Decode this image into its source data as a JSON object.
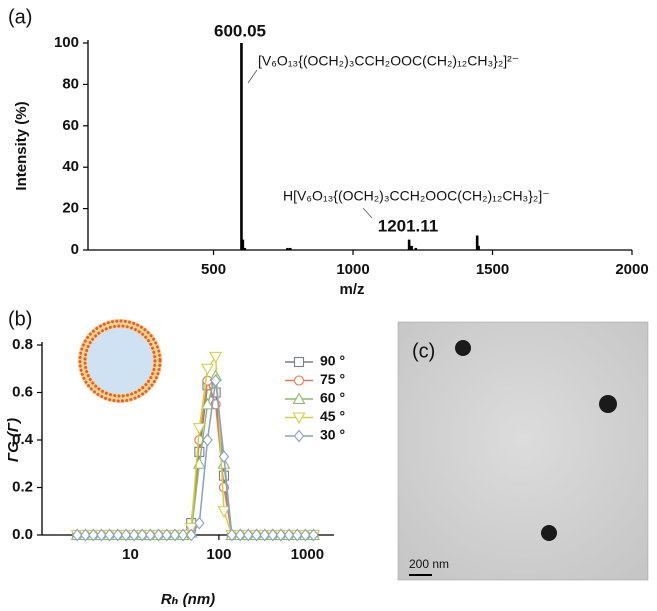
{
  "chart_data": [
    {
      "type": "stem",
      "label": "(a)",
      "x_label": "m/z",
      "y_label": "Intensity (%)",
      "x": [
        600.05,
        605,
        612,
        765,
        775,
        1201.11,
        1210,
        1225,
        1445,
        1450
      ],
      "values": [
        100,
        5,
        1,
        1,
        1,
        5,
        2,
        1,
        7,
        2
      ],
      "color": "#000000",
      "xlim": [
        50,
        2000
      ],
      "xticks": [
        500,
        1000,
        1500,
        2000
      ],
      "ylim": [
        0,
        100
      ],
      "yticks": [
        0,
        20,
        40,
        60,
        80,
        100
      ],
      "annotations": [
        "600.05",
        "[V₆O₁₃{(OCH₂)₃CCH₂OOC(CH₂)₁₂CH₃}₂]²⁻",
        "H[V₆O₁₃{(OCH₂)₃CCH₂OOC(CH₂)₁₂CH₃}₂]⁻",
        "1201.11"
      ]
    },
    {
      "type": "line",
      "label": "(b)",
      "x_label": "Rₕ (nm)",
      "y_label": "ΓG (Γ)",
      "xscale": "log",
      "x": [
        2.5,
        3.1,
        3.8,
        4.7,
        5.8,
        7.2,
        8.9,
        11,
        13.6,
        16.8,
        20.8,
        25.7,
        31.8,
        39.3,
        48.6,
        60.1,
        74.3,
        91.9,
        114,
        140,
        174,
        215,
        266,
        329,
        406,
        502,
        621,
        768,
        950,
        1174
      ],
      "series": [
        {
          "name": "90 °",
          "color": "#7a7f8a",
          "marker": "square",
          "values": [
            0,
            0,
            0,
            0,
            0,
            0,
            0,
            0,
            0,
            0,
            0,
            0,
            0,
            0,
            0.05,
            0.35,
            0.63,
            0.6,
            0.25,
            0,
            0,
            0,
            0,
            0,
            0,
            0,
            0,
            0,
            0,
            0
          ]
        },
        {
          "name": "75 °",
          "color": "#e07b54",
          "marker": "circle",
          "values": [
            0,
            0,
            0,
            0,
            0,
            0,
            0,
            0,
            0,
            0,
            0,
            0,
            0,
            0,
            0.02,
            0.4,
            0.65,
            0.55,
            0.2,
            0,
            0,
            0,
            0,
            0,
            0,
            0,
            0,
            0,
            0,
            0
          ]
        },
        {
          "name": "60 °",
          "color": "#8dbb6b",
          "marker": "triangle-up",
          "values": [
            0,
            0,
            0,
            0,
            0,
            0,
            0,
            0,
            0,
            0,
            0,
            0,
            0,
            0,
            0.01,
            0.3,
            0.55,
            0.67,
            0.3,
            0,
            0,
            0,
            0,
            0,
            0,
            0,
            0,
            0,
            0,
            0
          ]
        },
        {
          "name": "45 °",
          "color": "#d4cf4a",
          "marker": "triangle-down",
          "values": [
            0,
            0,
            0,
            0,
            0,
            0,
            0,
            0,
            0,
            0,
            0,
            0,
            0,
            0,
            0.03,
            0.45,
            0.7,
            0.75,
            0.1,
            0,
            0,
            0,
            0,
            0,
            0,
            0,
            0,
            0,
            0,
            0
          ]
        },
        {
          "name": "30 °",
          "color": "#8aa0c8",
          "marker": "diamond",
          "values": [
            0,
            0,
            0,
            0,
            0,
            0,
            0,
            0,
            0,
            0,
            0,
            0,
            0,
            0,
            0,
            0.05,
            0.4,
            0.65,
            0.33,
            0,
            0,
            0,
            0,
            0,
            0,
            0,
            0,
            0,
            0,
            0
          ]
        }
      ],
      "xlim": [
        1,
        2000
      ],
      "xticks": [
        10,
        100,
        1000
      ],
      "ylim": [
        0,
        0.8
      ],
      "yticks": [
        {
          "value": 0,
          "label": "0.0"
        },
        {
          "value": 0.2,
          "label": "0.2"
        },
        {
          "value": 0.4,
          "label": "0.4"
        },
        {
          "value": 0.6,
          "label": "0.6"
        },
        {
          "value": 0.8,
          "label": "0.8"
        }
      ],
      "legend": "top-right"
    }
  ],
  "image": {
    "label": "(c)",
    "scale_bar": "200 nm"
  }
}
